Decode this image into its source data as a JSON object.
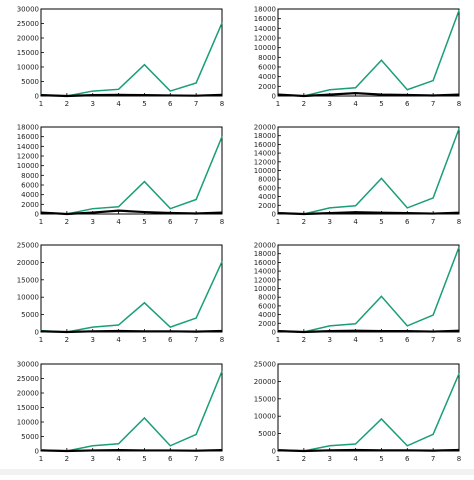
{
  "colors": {
    "series_1": "#1a9e77",
    "series_2": "#000000",
    "frame": "#000000",
    "background": "#ffffff"
  },
  "chart_data": [
    {
      "type": "line",
      "x": [
        1,
        2,
        3,
        4,
        5,
        6,
        7,
        8
      ],
      "ylim": [
        0,
        30000
      ],
      "yticks": [
        0,
        5000,
        10000,
        15000,
        20000,
        25000,
        30000
      ],
      "xticks": [
        1,
        2,
        3,
        4,
        5,
        6,
        7,
        8
      ],
      "series": [
        {
          "values": [
            400,
            0,
            1700,
            2300,
            10800,
            1700,
            4500,
            25200
          ]
        },
        {
          "values": [
            300,
            0,
            300,
            400,
            300,
            200,
            100,
            400
          ]
        }
      ]
    },
    {
      "type": "line",
      "x": [
        1,
        2,
        3,
        4,
        5,
        6,
        7,
        8
      ],
      "ylim": [
        0,
        18000
      ],
      "yticks": [
        0,
        2000,
        4000,
        6000,
        8000,
        10000,
        12000,
        14000,
        16000,
        18000
      ],
      "xticks": [
        1,
        2,
        3,
        4,
        5,
        6,
        7,
        8
      ],
      "series": [
        {
          "values": [
            300,
            0,
            1300,
            1700,
            7400,
            1300,
            3200,
            17700
          ]
        },
        {
          "values": [
            300,
            0,
            300,
            600,
            300,
            200,
            100,
            300
          ]
        }
      ]
    },
    {
      "type": "line",
      "x": [
        1,
        2,
        3,
        4,
        5,
        6,
        7,
        8
      ],
      "ylim": [
        0,
        18000
      ],
      "yticks": [
        0,
        2000,
        4000,
        6000,
        8000,
        10000,
        12000,
        14000,
        16000,
        18000
      ],
      "xticks": [
        1,
        2,
        3,
        4,
        5,
        6,
        7,
        8
      ],
      "series": [
        {
          "values": [
            300,
            0,
            1100,
            1500,
            6700,
            1100,
            3000,
            16000
          ]
        },
        {
          "values": [
            300,
            0,
            300,
            700,
            400,
            200,
            100,
            300
          ]
        }
      ]
    },
    {
      "type": "line",
      "x": [
        1,
        2,
        3,
        4,
        5,
        6,
        7,
        8
      ],
      "ylim": [
        0,
        20000
      ],
      "yticks": [
        0,
        2000,
        4000,
        6000,
        8000,
        10000,
        12000,
        14000,
        16000,
        18000,
        20000
      ],
      "xticks": [
        1,
        2,
        3,
        4,
        5,
        6,
        7,
        8
      ],
      "series": [
        {
          "values": [
            300,
            0,
            1400,
            1900,
            8200,
            1400,
            3700,
            19600
          ]
        },
        {
          "values": [
            200,
            0,
            200,
            400,
            300,
            200,
            100,
            300
          ]
        }
      ]
    },
    {
      "type": "line",
      "x": [
        1,
        2,
        3,
        4,
        5,
        6,
        7,
        8
      ],
      "ylim": [
        0,
        25000
      ],
      "yticks": [
        0,
        5000,
        10000,
        15000,
        20000,
        25000
      ],
      "xticks": [
        1,
        2,
        3,
        4,
        5,
        6,
        7,
        8
      ],
      "series": [
        {
          "values": [
            400,
            0,
            1400,
            2000,
            8400,
            1400,
            4000,
            20200
          ]
        },
        {
          "values": [
            200,
            0,
            200,
            300,
            200,
            200,
            100,
            300
          ]
        }
      ]
    },
    {
      "type": "line",
      "x": [
        1,
        2,
        3,
        4,
        5,
        6,
        7,
        8
      ],
      "ylim": [
        0,
        20000
      ],
      "yticks": [
        0,
        2000,
        4000,
        6000,
        8000,
        10000,
        12000,
        14000,
        16000,
        18000,
        20000
      ],
      "xticks": [
        1,
        2,
        3,
        4,
        5,
        6,
        7,
        8
      ],
      "series": [
        {
          "values": [
            300,
            0,
            1400,
            1900,
            8200,
            1400,
            3900,
            19500
          ]
        },
        {
          "values": [
            200,
            0,
            200,
            300,
            200,
            200,
            100,
            300
          ]
        }
      ]
    },
    {
      "type": "line",
      "x": [
        1,
        2,
        3,
        4,
        5,
        6,
        7,
        8
      ],
      "ylim": [
        0,
        30000
      ],
      "yticks": [
        0,
        5000,
        10000,
        15000,
        20000,
        25000,
        30000
      ],
      "xticks": [
        1,
        2,
        3,
        4,
        5,
        6,
        7,
        8
      ],
      "series": [
        {
          "values": [
            400,
            0,
            1800,
            2500,
            11400,
            1800,
            5700,
            27500
          ]
        },
        {
          "values": [
            200,
            0,
            200,
            300,
            200,
            200,
            100,
            300
          ]
        }
      ]
    },
    {
      "type": "line",
      "x": [
        1,
        2,
        3,
        4,
        5,
        6,
        7,
        8
      ],
      "ylim": [
        0,
        25000
      ],
      "yticks": [
        0,
        5000,
        10000,
        15000,
        20000,
        25000
      ],
      "xticks": [
        1,
        2,
        3,
        4,
        5,
        6,
        7,
        8
      ],
      "series": [
        {
          "values": [
            400,
            0,
            1500,
            2000,
            9200,
            1500,
            4800,
            22200
          ]
        },
        {
          "values": [
            200,
            0,
            200,
            300,
            200,
            200,
            100,
            300
          ]
        }
      ]
    }
  ]
}
